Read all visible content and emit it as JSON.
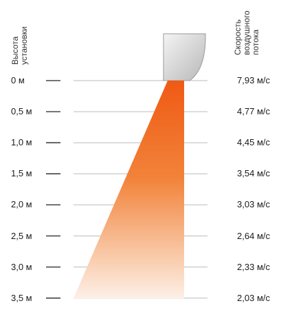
{
  "header": {
    "left_title_lines": [
      "Высота",
      "установки"
    ],
    "right_title_lines": [
      "Скорость",
      "воздушного",
      "потока"
    ]
  },
  "rows": [
    {
      "height": "0 м",
      "speed": "7,93 м/с"
    },
    {
      "height": "0,5 м",
      "speed": "4,77 м/с"
    },
    {
      "height": "1,0 м",
      "speed": "4,45 м/с"
    },
    {
      "height": "1,5 м",
      "speed": "3,54 м/с"
    },
    {
      "height": "2,0 м",
      "speed": "3,03 м/с"
    },
    {
      "height": "2,5 м",
      "speed": "2,64 м/с"
    },
    {
      "height": "3,0 м",
      "speed": "2,33 м/с"
    },
    {
      "height": "3,5 м",
      "speed": "2,03 м/с"
    }
  ],
  "colors": {
    "flow_top": "#ef5a14",
    "flow_bottom": "#fdf0e6",
    "device_light": "#f4f4f4",
    "device_dark": "#b8b8b8",
    "grid_line": "#bbbbbb",
    "dash": "#222222"
  }
}
